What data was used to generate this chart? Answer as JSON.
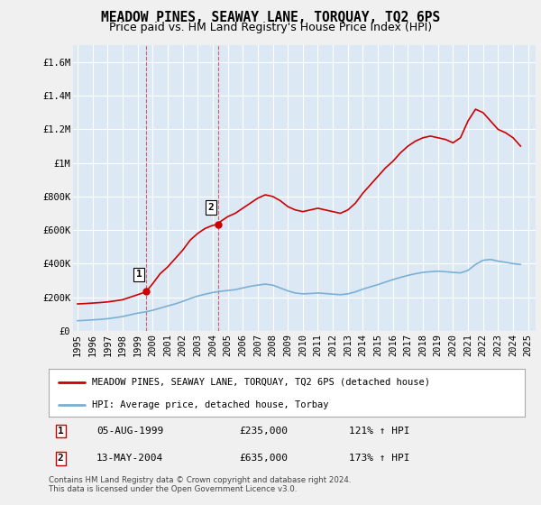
{
  "title": "MEADOW PINES, SEAWAY LANE, TORQUAY, TQ2 6PS",
  "subtitle": "Price paid vs. HM Land Registry's House Price Index (HPI)",
  "background_color": "#f0f0f0",
  "plot_bg_color": "#dce9f5",
  "ylim": [
    0,
    1700000
  ],
  "yticks": [
    0,
    200000,
    400000,
    600000,
    800000,
    1000000,
    1200000,
    1400000,
    1600000
  ],
  "ytick_labels": [
    "£0",
    "£200K",
    "£400K",
    "£600K",
    "£800K",
    "£1M",
    "£1.2M",
    "£1.4M",
    "£1.6M"
  ],
  "xlim_start": 1994.7,
  "xlim_end": 2025.5,
  "xticks": [
    1995,
    1996,
    1997,
    1998,
    1999,
    2000,
    2001,
    2002,
    2003,
    2004,
    2005,
    2006,
    2007,
    2008,
    2009,
    2010,
    2011,
    2012,
    2013,
    2014,
    2015,
    2016,
    2017,
    2018,
    2019,
    2020,
    2021,
    2022,
    2023,
    2024,
    2025
  ],
  "red_line_color": "#cc0000",
  "blue_line_color": "#7ab0d4",
  "sale1_x": 1999.58,
  "sale1_y": 235000,
  "sale1_label": "1",
  "sale2_x": 2004.37,
  "sale2_y": 635000,
  "sale2_label": "2",
  "dashed_x1": 1999.58,
  "dashed_x2": 2004.37,
  "legend_red_label": "MEADOW PINES, SEAWAY LANE, TORQUAY, TQ2 6PS (detached house)",
  "legend_blue_label": "HPI: Average price, detached house, Torbay",
  "table_rows": [
    {
      "num": "1",
      "date": "05-AUG-1999",
      "price": "£235,000",
      "hpi": "121% ↑ HPI"
    },
    {
      "num": "2",
      "date": "13-MAY-2004",
      "price": "£635,000",
      "hpi": "173% ↑ HPI"
    }
  ],
  "footer": "Contains HM Land Registry data © Crown copyright and database right 2024.\nThis data is licensed under the Open Government Licence v3.0.",
  "grid_color": "#ffffff",
  "title_fontsize": 10.5,
  "subtitle_fontsize": 9,
  "tick_fontsize": 7.5,
  "legend_fontsize": 8,
  "red_line_data_x": [
    1995.0,
    1995.5,
    1996.0,
    1996.5,
    1997.0,
    1997.5,
    1998.0,
    1998.5,
    1999.0,
    1999.5,
    1999.58,
    2000.0,
    2000.5,
    2001.0,
    2001.5,
    2002.0,
    2002.5,
    2003.0,
    2003.5,
    2004.0,
    2004.37,
    2004.5,
    2005.0,
    2005.5,
    2006.0,
    2006.5,
    2007.0,
    2007.5,
    2008.0,
    2008.5,
    2009.0,
    2009.5,
    2010.0,
    2010.5,
    2011.0,
    2011.5,
    2012.0,
    2012.5,
    2013.0,
    2013.5,
    2014.0,
    2014.5,
    2015.0,
    2015.5,
    2016.0,
    2016.5,
    2017.0,
    2017.5,
    2018.0,
    2018.5,
    2019.0,
    2019.5,
    2020.0,
    2020.5,
    2021.0,
    2021.5,
    2022.0,
    2022.5,
    2023.0,
    2023.5,
    2024.0,
    2024.5
  ],
  "red_line_data_y": [
    160000,
    162000,
    165000,
    168000,
    172000,
    178000,
    185000,
    200000,
    215000,
    230000,
    235000,
    280000,
    340000,
    380000,
    430000,
    480000,
    540000,
    580000,
    610000,
    628000,
    635000,
    650000,
    680000,
    700000,
    730000,
    760000,
    790000,
    810000,
    800000,
    775000,
    740000,
    720000,
    710000,
    720000,
    730000,
    720000,
    710000,
    700000,
    720000,
    760000,
    820000,
    870000,
    920000,
    970000,
    1010000,
    1060000,
    1100000,
    1130000,
    1150000,
    1160000,
    1150000,
    1140000,
    1120000,
    1150000,
    1250000,
    1320000,
    1300000,
    1250000,
    1200000,
    1180000,
    1150000,
    1100000
  ],
  "blue_line_data_x": [
    1995.0,
    1995.5,
    1996.0,
    1996.5,
    1997.0,
    1997.5,
    1998.0,
    1998.5,
    1999.0,
    1999.5,
    2000.0,
    2000.5,
    2001.0,
    2001.5,
    2002.0,
    2002.5,
    2003.0,
    2003.5,
    2004.0,
    2004.5,
    2005.0,
    2005.5,
    2006.0,
    2006.5,
    2007.0,
    2007.5,
    2008.0,
    2008.5,
    2009.0,
    2009.5,
    2010.0,
    2010.5,
    2011.0,
    2011.5,
    2012.0,
    2012.5,
    2013.0,
    2013.5,
    2014.0,
    2014.5,
    2015.0,
    2015.5,
    2016.0,
    2016.5,
    2017.0,
    2017.5,
    2018.0,
    2018.5,
    2019.0,
    2019.5,
    2020.0,
    2020.5,
    2021.0,
    2021.5,
    2022.0,
    2022.5,
    2023.0,
    2023.5,
    2024.0,
    2024.5
  ],
  "blue_line_data_y": [
    60000,
    62000,
    65000,
    68000,
    72000,
    78000,
    85000,
    95000,
    105000,
    112000,
    122000,
    135000,
    148000,
    160000,
    175000,
    192000,
    207000,
    218000,
    228000,
    235000,
    240000,
    245000,
    255000,
    265000,
    272000,
    278000,
    272000,
    255000,
    238000,
    225000,
    220000,
    222000,
    225000,
    222000,
    218000,
    215000,
    220000,
    232000,
    248000,
    262000,
    275000,
    290000,
    305000,
    318000,
    330000,
    340000,
    348000,
    352000,
    355000,
    352000,
    348000,
    345000,
    360000,
    395000,
    420000,
    425000,
    415000,
    408000,
    400000,
    395000
  ]
}
